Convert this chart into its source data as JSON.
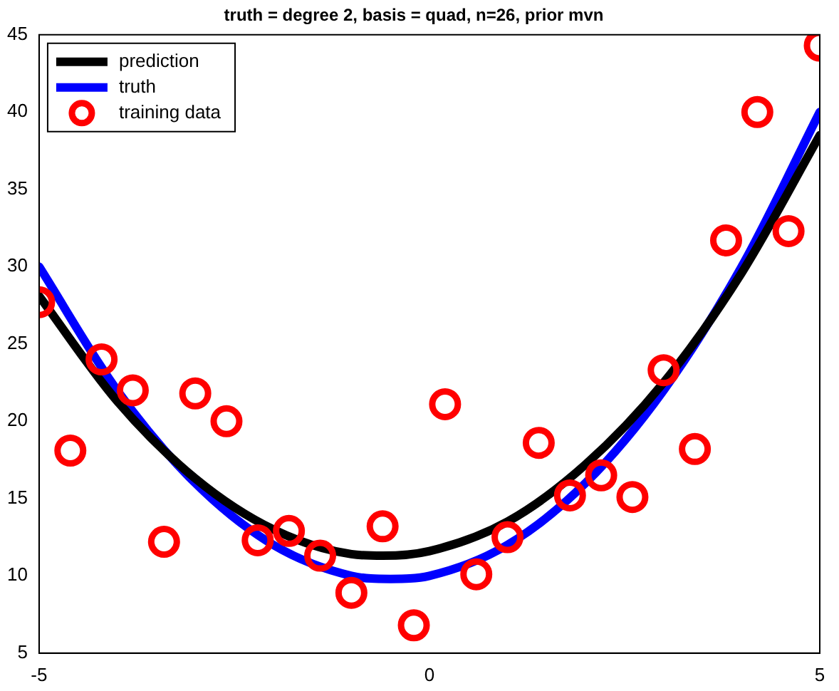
{
  "chart_data": {
    "type": "line",
    "title": "truth = degree 2, basis = quad, n=26, prior mvn",
    "xlim": [
      -5,
      5
    ],
    "xticks": [
      -5,
      0,
      5
    ],
    "ylim": [
      5,
      45
    ],
    "yticks": [
      5,
      10,
      15,
      20,
      25,
      30,
      35,
      40,
      45
    ],
    "grid": false,
    "legend": "top left",
    "series": [
      {
        "name": "prediction",
        "type": "line",
        "color": "#000000",
        "marker": "none",
        "line_style": "solid",
        "x": [
          -5,
          -4,
          -3,
          -2,
          -1,
          -0.6,
          0,
          1,
          2,
          3,
          4,
          5
        ],
        "values": [
          28.1,
          21.3,
          16.3,
          13.0,
          11.4,
          11.3,
          11.6,
          13.5,
          17.2,
          22.5,
          29.6,
          38.5
        ]
      },
      {
        "name": "truth",
        "type": "line",
        "color": "#0000ff",
        "marker": "none",
        "line_style": "solid",
        "x": [
          -5,
          -4,
          -3,
          -2,
          -1,
          -0.5,
          0,
          1,
          2,
          3,
          4,
          5
        ],
        "values": [
          30,
          22,
          16,
          12,
          10,
          9.8,
          10,
          12,
          16,
          22,
          30,
          40
        ]
      },
      {
        "name": "training data",
        "type": "scatter",
        "color": "#ff0000",
        "marker": "circle",
        "x": [
          -5,
          -4.6,
          -4.2,
          -3.8,
          -3.4,
          -3,
          -2.6,
          -2.2,
          -1.8,
          -1.4,
          -1,
          -0.6,
          -0.2,
          0.2,
          0.6,
          1,
          1.4,
          1.8,
          2.2,
          2.6,
          3,
          3.4,
          3.8,
          4.2,
          4.6,
          5
        ],
        "values": [
          27.7,
          18.1,
          24.0,
          22.0,
          12.2,
          21.8,
          20.0,
          12.3,
          12.9,
          11.3,
          8.9,
          13.2,
          6.8,
          21.1,
          10.1,
          12.5,
          18.6,
          15.2,
          16.5,
          15.1,
          23.3,
          18.2,
          31.7,
          40.0,
          32.3,
          44.3
        ]
      }
    ]
  }
}
